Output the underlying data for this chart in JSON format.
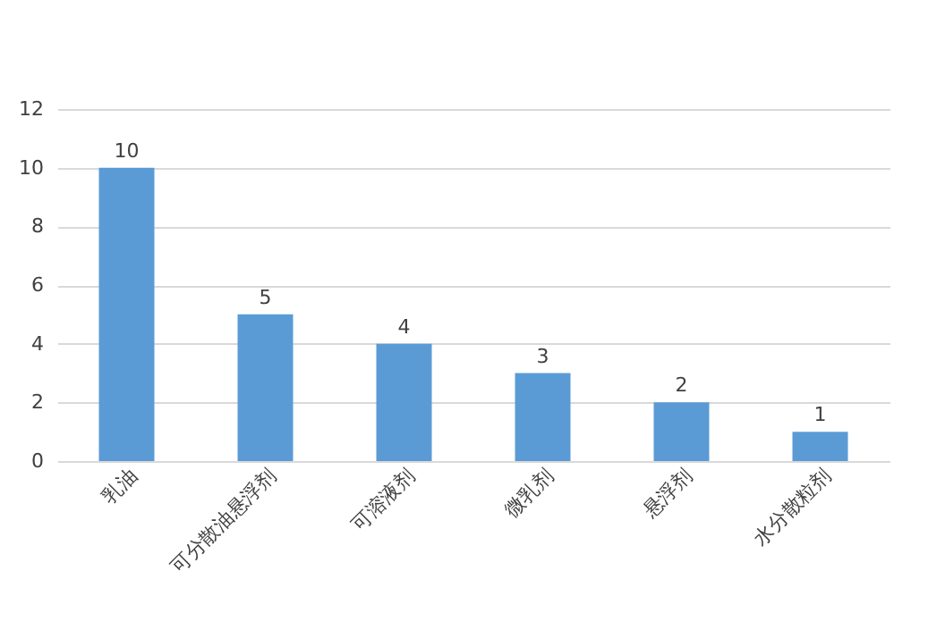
{
  "chart_data": {
    "type": "bar",
    "categories": [
      "乳油",
      "可分散油悬浮剂",
      "可溶液剂",
      "微乳剂",
      "悬浮剂",
      "水分散粒剂"
    ],
    "values": [
      10,
      5,
      4,
      3,
      2,
      1
    ],
    "color": "#5b9bd5",
    "ylim": [
      0,
      12
    ],
    "yticks": [
      0,
      2,
      4,
      6,
      8,
      10,
      12
    ],
    "grid": "y",
    "data_labels": true
  }
}
